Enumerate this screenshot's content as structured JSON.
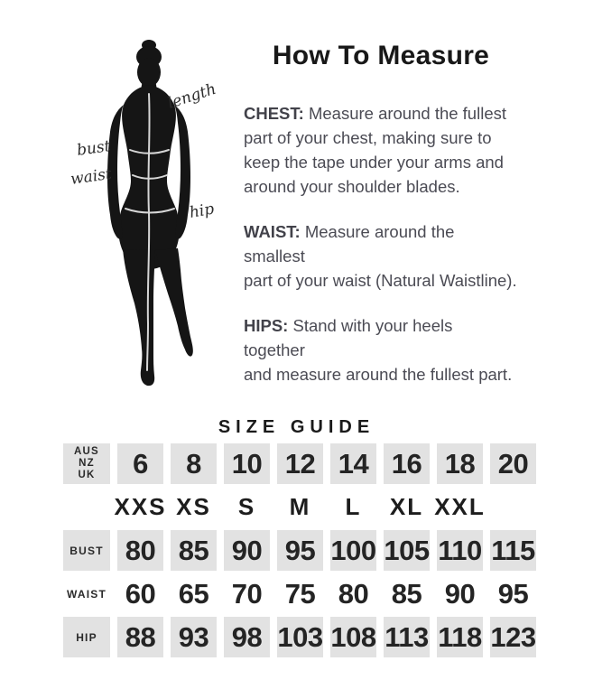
{
  "how_to_measure": {
    "title": "How To Measure",
    "sections": [
      {
        "label": "CHEST:",
        "text": "Measure around the fullest\npart of your chest, making sure to\nkeep the tape under your arms and\naround your shoulder blades."
      },
      {
        "label": "WAIST:",
        "text": "Measure around the smallest\npart of your waist (Natural Waistline)."
      },
      {
        "label": "HIPS:",
        "text": "Stand with your heels together\nand measure around the fullest part."
      }
    ]
  },
  "figure": {
    "labels": {
      "length": "length",
      "bust": "bust",
      "waist": "waist",
      "hip": "hip"
    }
  },
  "size_guide": {
    "title": "SIZE GUIDE",
    "region_label": [
      "AUS",
      "NZ",
      "UK"
    ],
    "sizes": [
      "6",
      "8",
      "10",
      "12",
      "14",
      "16",
      "18",
      "20"
    ],
    "letter_sizes": [
      "XXS",
      "XS",
      "S",
      "M",
      "L",
      "XL",
      "XXL",
      ""
    ],
    "rows": [
      {
        "label": "BUST",
        "values": [
          "80",
          "85",
          "90",
          "95",
          "100",
          "105",
          "110",
          "115"
        ]
      },
      {
        "label": "WAIST",
        "values": [
          "60",
          "65",
          "70",
          "75",
          "80",
          "85",
          "90",
          "95"
        ]
      },
      {
        "label": "HIP",
        "values": [
          "88",
          "93",
          "98",
          "103",
          "108",
          "113",
          "118",
          "123"
        ]
      }
    ]
  },
  "colors": {
    "silhouette": "#151515",
    "cell_shade": "#e2e2e2",
    "body_text": "#4b4b54",
    "heading_text": "#181818",
    "measure_line": "#d6d6d6"
  }
}
